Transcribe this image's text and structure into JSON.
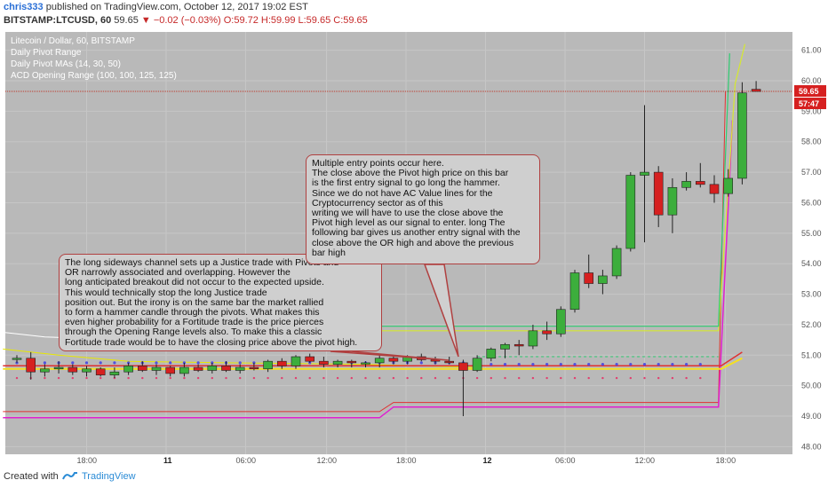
{
  "header": {
    "author": "chris333",
    "published_text": "published on TradingView.com, October 12, 2017 19:02 EST",
    "symbol": "BITSTAMP:LTCUSD, 60",
    "last_price": "59.65",
    "change": "▼ −0.02 (−0.03%)",
    "ohlc": "O:59.72 H:59.99 L:59.65 C:59.65"
  },
  "legend": [
    "Litecoin / Dollar, 60, BITSTAMP",
    "Daily Pivot Range",
    "Daily Pivot MAs (14, 30, 50)",
    "ACD Opening Range (100, 100, 125, 125)"
  ],
  "callouts": {
    "left": "The long sideways channel sets up a Justice trade with Pivots and\nOR narrowly associated and overlapping. However the\nlong anticipated breakout did not occur to the expected upside.\nThis would technically stop the long Justice trade\nposition out. But the irony is on the same bar the market rallied\nto form a hammer candle through the pivots. What makes this\neven higher probability for a Fortitude trade is the price pierces\nthrough the Opening Range levels also. To make this a classic\nFortitude trade would be to have the closing price above the pivot high.",
    "right": "Multiple entry points occur here.\nThe close above the Pivot high price on this bar\nis the first entry signal to go long the hammer.\nSince we do not have AC Value lines for the\nCryptocurrency sector as of this\nwriting we will have to use the close above the\nPivot high level as our signal to enter. long The\nfollowing bar gives us another entry signal with the\nclose above the OR high and above the previous\nbar high"
  },
  "footer": {
    "created_with": "Created with",
    "brand": "TradingView"
  },
  "colors": {
    "background": "#b9b9b9",
    "up_candle": "#3cae3c",
    "down_candle": "#d62020",
    "pivot_line": "#e8e800",
    "or_high": "#2ecc71",
    "or_low_red": "#e03030",
    "magenta": "#e020d0",
    "price_line": "#c0392b",
    "last_price_bg": "#d62020"
  },
  "chart_data": {
    "type": "candlestick",
    "title": "Litecoin / Dollar, 60, BITSTAMP",
    "ylim": [
      47.75,
      61.6
    ],
    "y_ticks": [
      "48.00",
      "49.00",
      "50.00",
      "51.00",
      "52.00",
      "53.00",
      "54.00",
      "55.00",
      "56.00",
      "57.00",
      "58.00",
      "59.00",
      "60.00",
      "61.00"
    ],
    "x_ticks": [
      {
        "label": "18:00",
        "bold": false,
        "bar": 5.0
      },
      {
        "label": "11",
        "bold": true,
        "bar": 10.7
      },
      {
        "label": "06:00",
        "bold": false,
        "bar": 16.4
      },
      {
        "label": "12:00",
        "bold": false,
        "bar": 22.2
      },
      {
        "label": "18:00",
        "bold": false,
        "bar": 27.9
      },
      {
        "label": "12",
        "bold": true,
        "bar": 33.6
      },
      {
        "label": "06:00",
        "bold": false,
        "bar": 39.3
      },
      {
        "label": "12:00",
        "bold": false,
        "bar": 45.0
      },
      {
        "label": "18:00",
        "bold": false,
        "bar": 50.8
      }
    ],
    "last_price_label": "59.65",
    "countdown_label": "57:47",
    "last_price": 59.65,
    "candles": [
      [
        50.9,
        51.0,
        50.75,
        50.9
      ],
      [
        50.9,
        51.1,
        50.2,
        50.45
      ],
      [
        50.45,
        50.7,
        50.3,
        50.55
      ],
      [
        50.55,
        50.8,
        50.4,
        50.6
      ],
      [
        50.6,
        50.7,
        50.35,
        50.45
      ],
      [
        50.45,
        50.65,
        50.3,
        50.55
      ],
      [
        50.55,
        50.6,
        50.3,
        50.35
      ],
      [
        50.35,
        50.6,
        50.25,
        50.45
      ],
      [
        50.45,
        50.75,
        50.35,
        50.65
      ],
      [
        50.65,
        50.8,
        50.45,
        50.5
      ],
      [
        50.5,
        50.7,
        50.35,
        50.6
      ],
      [
        50.6,
        50.65,
        50.3,
        50.4
      ],
      [
        50.4,
        50.75,
        50.3,
        50.6
      ],
      [
        50.6,
        50.7,
        50.45,
        50.5
      ],
      [
        50.5,
        50.75,
        50.4,
        50.65
      ],
      [
        50.65,
        50.8,
        50.45,
        50.5
      ],
      [
        50.5,
        50.7,
        50.4,
        50.6
      ],
      [
        50.6,
        50.75,
        50.5,
        50.55
      ],
      [
        50.55,
        50.85,
        50.45,
        50.8
      ],
      [
        50.8,
        50.9,
        50.55,
        50.65
      ],
      [
        50.65,
        51.0,
        50.55,
        50.95
      ],
      [
        50.95,
        51.05,
        50.75,
        50.8
      ],
      [
        50.8,
        50.95,
        50.6,
        50.7
      ],
      [
        50.7,
        50.85,
        50.6,
        50.8
      ],
      [
        50.8,
        50.85,
        50.6,
        50.75
      ],
      [
        50.75,
        50.8,
        50.6,
        50.75
      ],
      [
        50.75,
        51.0,
        50.6,
        50.9
      ],
      [
        50.9,
        51.0,
        50.7,
        50.8
      ],
      [
        50.8,
        51.0,
        50.7,
        50.95
      ],
      [
        50.95,
        51.05,
        50.8,
        50.85
      ],
      [
        50.85,
        50.95,
        50.7,
        50.8
      ],
      [
        50.8,
        50.95,
        50.7,
        50.75
      ],
      [
        50.75,
        50.85,
        49.0,
        50.5
      ],
      [
        50.5,
        51.0,
        50.45,
        50.9
      ],
      [
        50.9,
        51.25,
        50.8,
        51.2
      ],
      [
        51.2,
        51.4,
        50.9,
        51.35
      ],
      [
        51.35,
        51.5,
        51.0,
        51.3
      ],
      [
        51.3,
        52.0,
        51.2,
        51.8
      ],
      [
        51.8,
        52.1,
        51.5,
        51.7
      ],
      [
        51.7,
        52.6,
        51.6,
        52.5
      ],
      [
        52.5,
        53.8,
        52.4,
        53.7
      ],
      [
        53.7,
        54.3,
        53.2,
        53.35
      ],
      [
        53.35,
        53.8,
        53.0,
        53.6
      ],
      [
        53.6,
        54.6,
        53.5,
        54.5
      ],
      [
        54.5,
        57.0,
        54.4,
        56.9
      ],
      [
        56.9,
        59.2,
        54.7,
        57.0
      ],
      [
        57.0,
        57.2,
        55.2,
        55.6
      ],
      [
        55.6,
        56.8,
        55.0,
        56.5
      ],
      [
        56.5,
        57.0,
        56.4,
        56.7
      ],
      [
        56.7,
        57.3,
        56.5,
        56.6
      ],
      [
        56.6,
        56.9,
        56.0,
        56.3
      ],
      [
        56.3,
        57.1,
        56.2,
        56.8
      ],
      [
        56.8,
        59.95,
        56.6,
        59.6
      ],
      [
        59.72,
        59.99,
        59.65,
        59.65
      ]
    ],
    "annotation": "pivot, opening range and moving-average overlay lines drawn as levels over the price candles"
  }
}
